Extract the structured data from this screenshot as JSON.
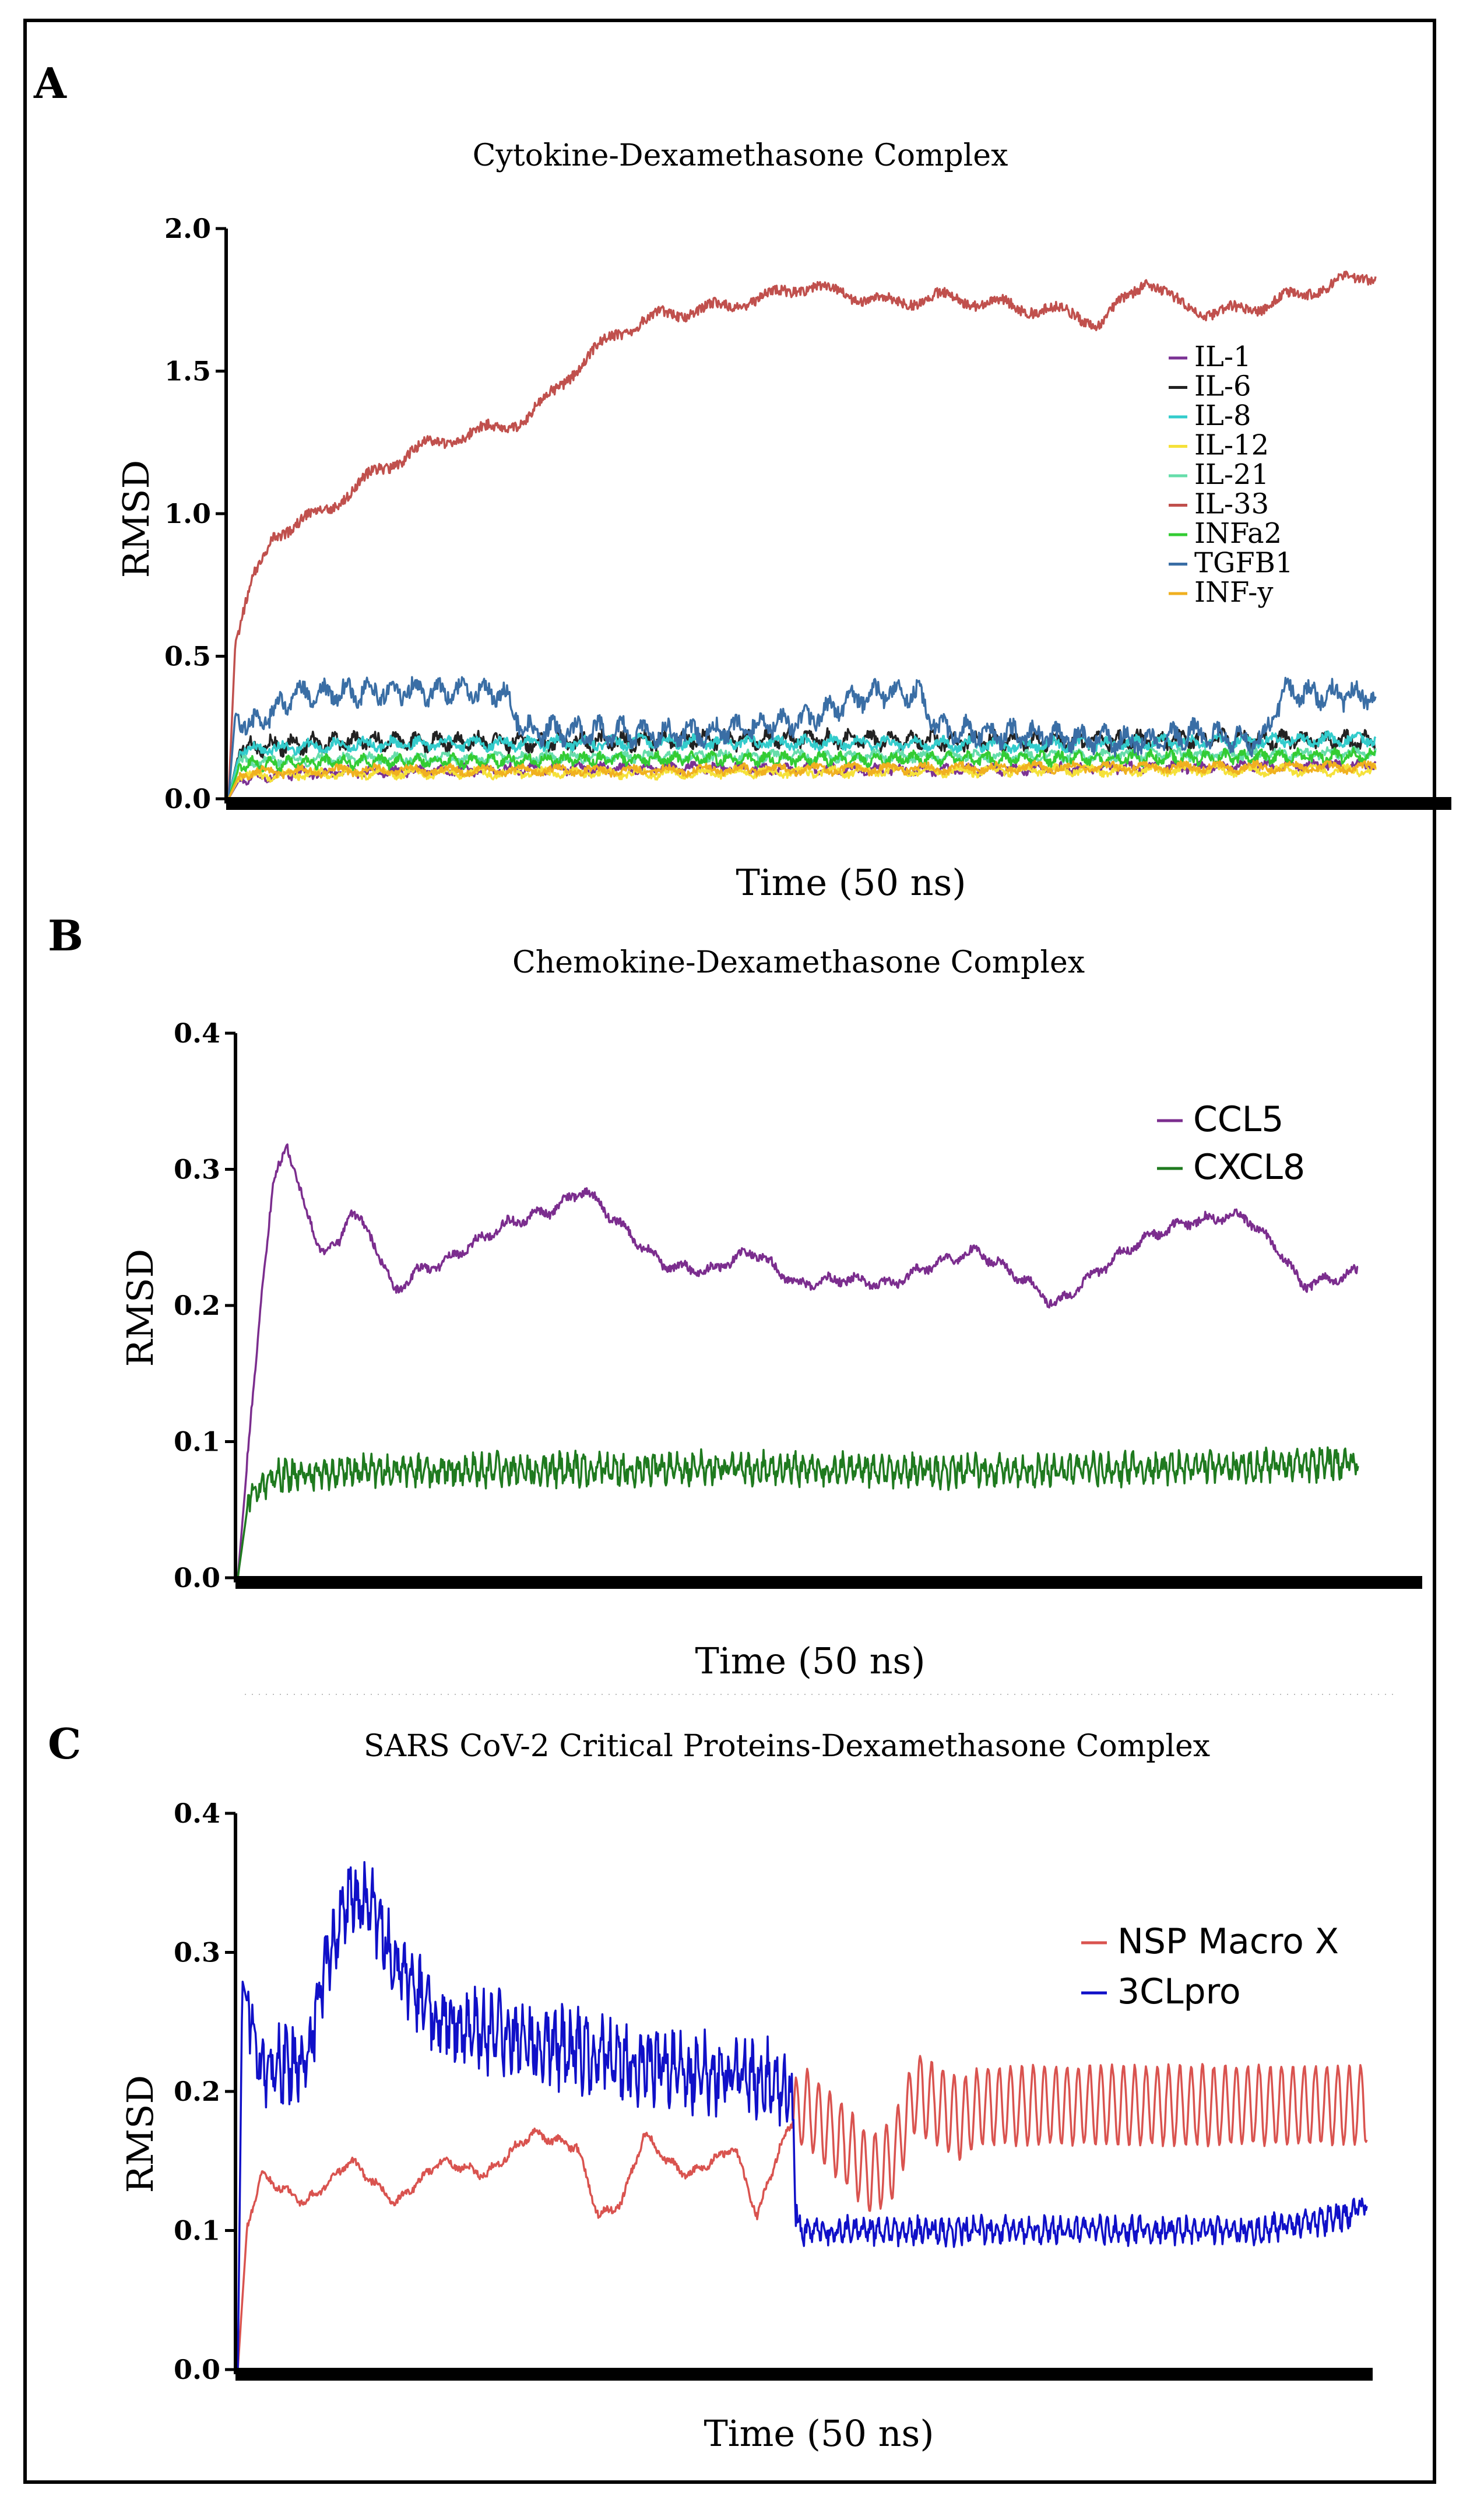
{
  "chart_data": [
    {
      "panel": "A",
      "type": "line",
      "title": "Cytokine-Dexamethasone Complex",
      "xlabel": "Time (50 ns)",
      "ylabel": "RMSD",
      "xlim": [
        0,
        50
      ],
      "ylim": [
        0,
        2.0
      ],
      "yticks": [
        "0.0",
        "0.5",
        "1.0",
        "1.5",
        "2.0"
      ],
      "legend_position": "right",
      "series": [
        {
          "name": "IL-1",
          "color": "#7b3294",
          "points": [
            [
              0,
              0
            ],
            [
              0.5,
              0.07
            ],
            [
              3,
              0.09
            ],
            [
              10,
              0.1
            ],
            [
              20,
              0.11
            ],
            [
              30,
              0.1
            ],
            [
              40,
              0.11
            ],
            [
              50,
              0.12
            ]
          ],
          "noise": 0.02,
          "period": 1.0
        },
        {
          "name": "IL-6",
          "color": "#222222",
          "points": [
            [
              0,
              0
            ],
            [
              0.5,
              0.18
            ],
            [
              5,
              0.2
            ],
            [
              15,
              0.2
            ],
            [
              25,
              0.21
            ],
            [
              35,
              0.2
            ],
            [
              45,
              0.21
            ],
            [
              50,
              0.2
            ]
          ],
          "noise": 0.035,
          "period": 0.9
        },
        {
          "name": "IL-8",
          "color": "#33cccc",
          "points": [
            [
              0,
              0
            ],
            [
              0.5,
              0.17
            ],
            [
              5,
              0.19
            ],
            [
              20,
              0.2
            ],
            [
              35,
              0.19
            ],
            [
              50,
              0.21
            ]
          ],
          "noise": 0.025,
          "period": 1.2
        },
        {
          "name": "IL-12",
          "color": "#f5e13a",
          "points": [
            [
              0,
              0
            ],
            [
              0.5,
              0.08
            ],
            [
              5,
              0.09
            ],
            [
              20,
              0.09
            ],
            [
              35,
              0.1
            ],
            [
              50,
              0.1
            ]
          ],
          "noise": 0.02,
          "period": 1.4
        },
        {
          "name": "IL-21",
          "color": "#66ddaa",
          "points": [
            [
              0,
              0
            ],
            [
              0.5,
              0.13
            ],
            [
              5,
              0.14
            ],
            [
              20,
              0.15
            ],
            [
              35,
              0.15
            ],
            [
              50,
              0.16
            ]
          ],
          "noise": 0.02,
          "period": 1.1
        },
        {
          "name": "IL-33",
          "color": "#c0504d",
          "points": [
            [
              0,
              0
            ],
            [
              0.3,
              0.55
            ],
            [
              1,
              0.75
            ],
            [
              2,
              0.93
            ],
            [
              4,
              1.0
            ],
            [
              6,
              1.12
            ],
            [
              8,
              1.22
            ],
            [
              10,
              1.27
            ],
            [
              13,
              1.33
            ],
            [
              15,
              1.5
            ],
            [
              17,
              1.64
            ],
            [
              19,
              1.7
            ],
            [
              21,
              1.72
            ],
            [
              23,
              1.75
            ],
            [
              25,
              1.8
            ],
            [
              27,
              1.77
            ],
            [
              29,
              1.74
            ],
            [
              31,
              1.76
            ],
            [
              33,
              1.74
            ],
            [
              35,
              1.72
            ],
            [
              37,
              1.7
            ],
            [
              38,
              1.66
            ],
            [
              40,
              1.83
            ],
            [
              41,
              1.75
            ],
            [
              43,
              1.7
            ],
            [
              45,
              1.73
            ],
            [
              47,
              1.78
            ],
            [
              49,
              1.82
            ],
            [
              50,
              1.84
            ]
          ],
          "noise": 0.03,
          "period": 2.5
        },
        {
          "name": "INFa2",
          "color": "#33cc33",
          "points": [
            [
              0,
              0
            ],
            [
              0.5,
              0.12
            ],
            [
              5,
              0.13
            ],
            [
              20,
              0.14
            ],
            [
              35,
              0.14
            ],
            [
              50,
              0.15
            ]
          ],
          "noise": 0.025,
          "period": 0.8
        },
        {
          "name": "TGFB1",
          "color": "#3a6ea5",
          "points": [
            [
              0,
              0
            ],
            [
              0.3,
              0.3
            ],
            [
              1,
              0.25
            ],
            [
              3,
              0.37
            ],
            [
              8,
              0.38
            ],
            [
              12,
              0.37
            ],
            [
              13,
              0.24
            ],
            [
              20,
              0.23
            ],
            [
              25,
              0.27
            ],
            [
              28,
              0.37
            ],
            [
              30,
              0.37
            ],
            [
              31,
              0.24
            ],
            [
              40,
              0.2
            ],
            [
              42,
              0.23
            ],
            [
              45,
              0.2
            ],
            [
              46,
              0.37
            ],
            [
              50,
              0.36
            ]
          ],
          "noise": 0.05,
          "period": 1.0
        },
        {
          "name": "INF-y",
          "color": "#f0b020",
          "points": [
            [
              0,
              0
            ],
            [
              0.5,
              0.09
            ],
            [
              5,
              0.1
            ],
            [
              20,
              0.1
            ],
            [
              35,
              0.11
            ],
            [
              50,
              0.11
            ]
          ],
          "noise": 0.02,
          "period": 1.6
        }
      ]
    },
    {
      "panel": "B",
      "type": "line",
      "title": "Chemokine-Dexamethasone Complex",
      "xlabel": "Time (50 ns)",
      "ylabel": "RMSD",
      "xlim": [
        0,
        50
      ],
      "ylim": [
        0,
        0.4
      ],
      "yticks": [
        "0.0",
        "0.1",
        "0.2",
        "0.3",
        "0.4"
      ],
      "legend_position": "top-right",
      "series": [
        {
          "name": "CCL5",
          "color": "#7b2d8e",
          "points": [
            [
              0,
              0
            ],
            [
              1,
              0.2
            ],
            [
              1.6,
              0.29
            ],
            [
              2.2,
              0.32
            ],
            [
              3,
              0.27
            ],
            [
              3.8,
              0.24
            ],
            [
              4.5,
              0.245
            ],
            [
              5,
              0.27
            ],
            [
              6,
              0.25
            ],
            [
              7,
              0.21
            ],
            [
              8,
              0.225
            ],
            [
              9,
              0.23
            ],
            [
              10,
              0.24
            ],
            [
              12,
              0.26
            ],
            [
              14,
              0.27
            ],
            [
              15.5,
              0.285
            ],
            [
              17,
              0.26
            ],
            [
              19,
              0.23
            ],
            [
              21,
              0.225
            ],
            [
              23,
              0.24
            ],
            [
              25,
              0.215
            ],
            [
              27,
              0.22
            ],
            [
              29,
              0.215
            ],
            [
              31,
              0.23
            ],
            [
              33,
              0.24
            ],
            [
              35,
              0.22
            ],
            [
              36.5,
              0.2
            ],
            [
              38,
              0.22
            ],
            [
              40,
              0.245
            ],
            [
              42,
              0.26
            ],
            [
              44,
              0.265
            ],
            [
              45,
              0.265
            ],
            [
              46.5,
              0.24
            ],
            [
              47.5,
              0.215
            ],
            [
              49,
              0.22
            ],
            [
              50,
              0.225
            ]
          ],
          "noise": 0.005,
          "period": 1.3
        },
        {
          "name": "CXCL8",
          "color": "#1f7a1f",
          "points": [
            [
              0,
              0
            ],
            [
              0.5,
              0.06
            ],
            [
              1.5,
              0.075
            ],
            [
              5,
              0.078
            ],
            [
              15,
              0.08
            ],
            [
              25,
              0.08
            ],
            [
              35,
              0.078
            ],
            [
              45,
              0.082
            ],
            [
              50,
              0.085
            ]
          ],
          "noise": 0.012,
          "period": 0.35
        }
      ]
    },
    {
      "panel": "C",
      "type": "line",
      "title": "SARS CoV-2 Critical Proteins-Dexamethasone Complex",
      "xlabel": "Time (50 ns)",
      "ylabel": "RMSD",
      "xlim": [
        0,
        50
      ],
      "ylim": [
        0,
        0.4
      ],
      "yticks": [
        "0.0",
        "0.1",
        "0.2",
        "0.3",
        "0.4"
      ],
      "legend_position": "right",
      "series": [
        {
          "name": "NSP Macro X",
          "color": "#d9534f",
          "points": [
            [
              0,
              0
            ],
            [
              0.4,
              0.1
            ],
            [
              1,
              0.14
            ],
            [
              3,
              0.12
            ],
            [
              5,
              0.15
            ],
            [
              7,
              0.12
            ],
            [
              9,
              0.15
            ],
            [
              11,
              0.14
            ],
            [
              13,
              0.17
            ],
            [
              15,
              0.16
            ],
            [
              16,
              0.11
            ],
            [
              17,
              0.12
            ],
            [
              18,
              0.17
            ],
            [
              19,
              0.15
            ],
            [
              20,
              0.14
            ],
            [
              22,
              0.16
            ],
            [
              23,
              0.11
            ],
            [
              24,
              0.16
            ],
            [
              25,
              0.19
            ],
            [
              27,
              0.16
            ],
            [
              28,
              0.14
            ],
            [
              29,
              0.15
            ],
            [
              30,
              0.2
            ],
            [
              31,
              0.19
            ],
            [
              32,
              0.18
            ],
            [
              33,
              0.19
            ],
            [
              35,
              0.19
            ],
            [
              40,
              0.19
            ],
            [
              45,
              0.19
            ],
            [
              50,
              0.19
            ]
          ],
          "noise": 0.004,
          "period": 1.0,
          "osc_from": 24.6,
          "osc_amp": 0.028,
          "osc_period": 0.5
        },
        {
          "name": "3CLpro",
          "color": "#1010c8",
          "points": [
            [
              0,
              0
            ],
            [
              0.2,
              0.28
            ],
            [
              1,
              0.22
            ],
            [
              3,
              0.22
            ],
            [
              4,
              0.3
            ],
            [
              5,
              0.34
            ],
            [
              6,
              0.33
            ],
            [
              7,
              0.29
            ],
            [
              9,
              0.25
            ],
            [
              12,
              0.24
            ],
            [
              15,
              0.23
            ],
            [
              18,
              0.22
            ],
            [
              21,
              0.21
            ],
            [
              23,
              0.21
            ],
            [
              24.5,
              0.2
            ],
            [
              24.8,
              0.1
            ],
            [
              27,
              0.1
            ],
            [
              30,
              0.1
            ],
            [
              33,
              0.1
            ],
            [
              36,
              0.1
            ],
            [
              40,
              0.1
            ],
            [
              45,
              0.1
            ],
            [
              49,
              0.11
            ],
            [
              50,
              0.12
            ]
          ],
          "noise": 0.028,
          "period": 0.35,
          "quiet_from": 24.8,
          "quiet_noise": 0.01
        }
      ]
    }
  ]
}
